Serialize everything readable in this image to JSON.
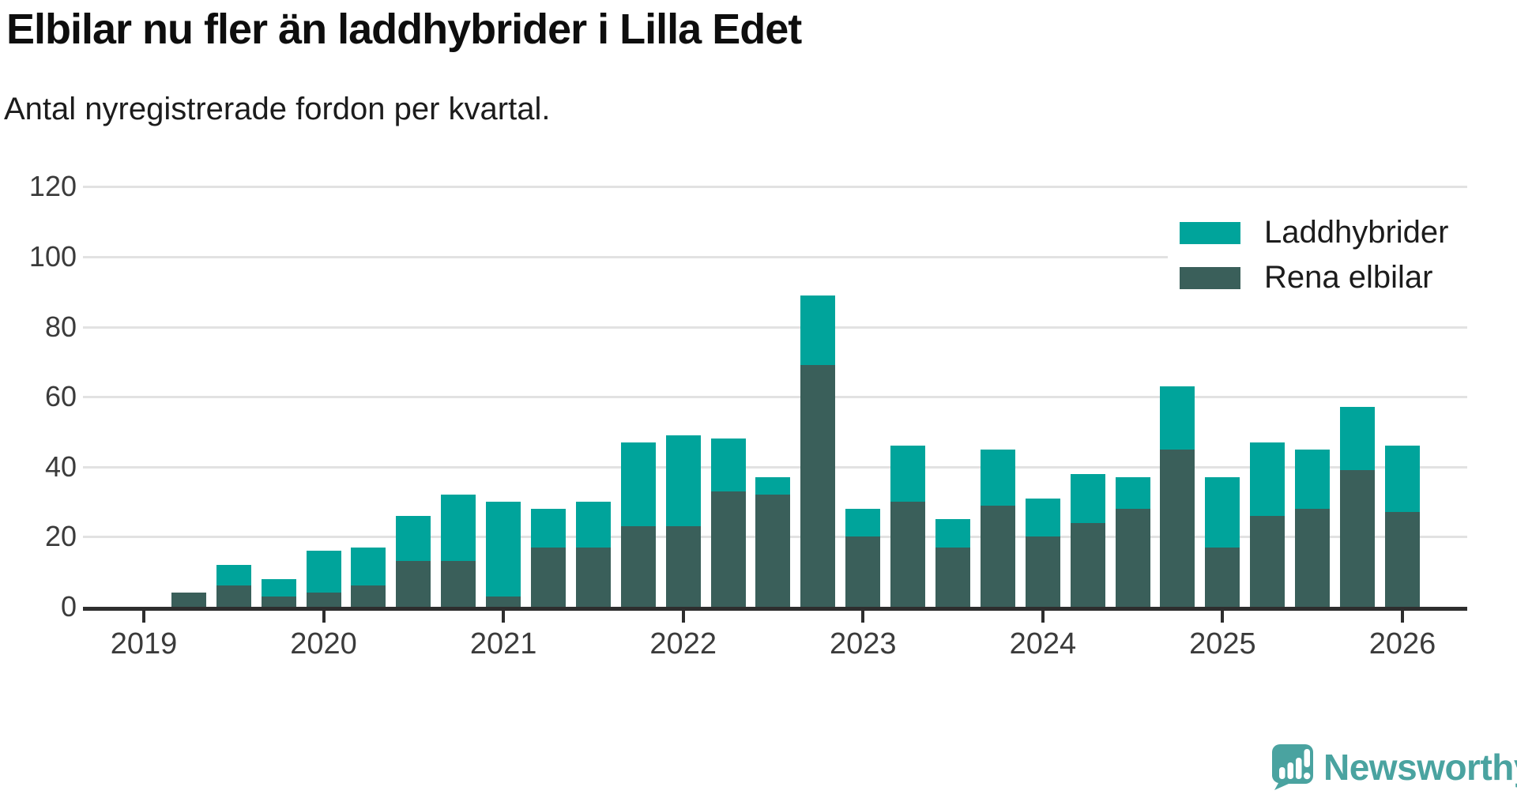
{
  "header": {
    "title": "Elbilar nu fler än laddhybrider i Lilla Edet",
    "subtitle": "Antal nyregistrerade fordon per kvartal."
  },
  "branding": {
    "wordmark": "Newsworthy"
  },
  "colors": {
    "laddhybrider": "#00a49b",
    "rena_elbilar": "#3a5f5a",
    "gridline": "#e2e2e2",
    "axis": "#2e2e2e",
    "axis_text": "#3b3b3b",
    "logo_teal": "#4aa3a0"
  },
  "chart_data": {
    "type": "bar",
    "stacked": true,
    "title": "Elbilar nu fler än laddhybrider i Lilla Edet",
    "subtitle": "Antal nyregistrerade fordon per kvartal.",
    "grid": "horizontal",
    "legend_position": "top-right",
    "ylim": [
      0,
      120
    ],
    "y_ticks": [
      0,
      20,
      40,
      60,
      80,
      100,
      120
    ],
    "x_tick_labels": [
      "2019",
      "2020",
      "2021",
      "2022",
      "2023",
      "2024",
      "2025",
      "2026"
    ],
    "categories": [
      "2019 Q2",
      "2019 Q3",
      "2019 Q4",
      "2020 Q1",
      "2020 Q2",
      "2020 Q3",
      "2020 Q4",
      "2021 Q1",
      "2021 Q2",
      "2021 Q3",
      "2021 Q4",
      "2022 Q1",
      "2022 Q2",
      "2022 Q3",
      "2022 Q4",
      "2023 Q1",
      "2023 Q2",
      "2023 Q3",
      "2023 Q4",
      "2024 Q1",
      "2024 Q2",
      "2024 Q3",
      "2024 Q4",
      "2025 Q1",
      "2025 Q2",
      "2025 Q3",
      "2025 Q4",
      "2026 Q1"
    ],
    "series": [
      {
        "name": "Laddhybrider",
        "color": "#00a49b",
        "stack_position": "top",
        "values": [
          0,
          6,
          5,
          12,
          11,
          13,
          19,
          27,
          11,
          13,
          24,
          26,
          15,
          5,
          20,
          8,
          16,
          8,
          16,
          11,
          14,
          9,
          18,
          20,
          21,
          17,
          18,
          19
        ]
      },
      {
        "name": "Rena elbilar",
        "color": "#3a5f5a",
        "stack_position": "bottom",
        "values": [
          4,
          6,
          3,
          4,
          6,
          13,
          13,
          3,
          17,
          17,
          23,
          23,
          33,
          32,
          69,
          20,
          30,
          17,
          29,
          20,
          24,
          28,
          45,
          17,
          26,
          28,
          39,
          27
        ]
      }
    ]
  }
}
